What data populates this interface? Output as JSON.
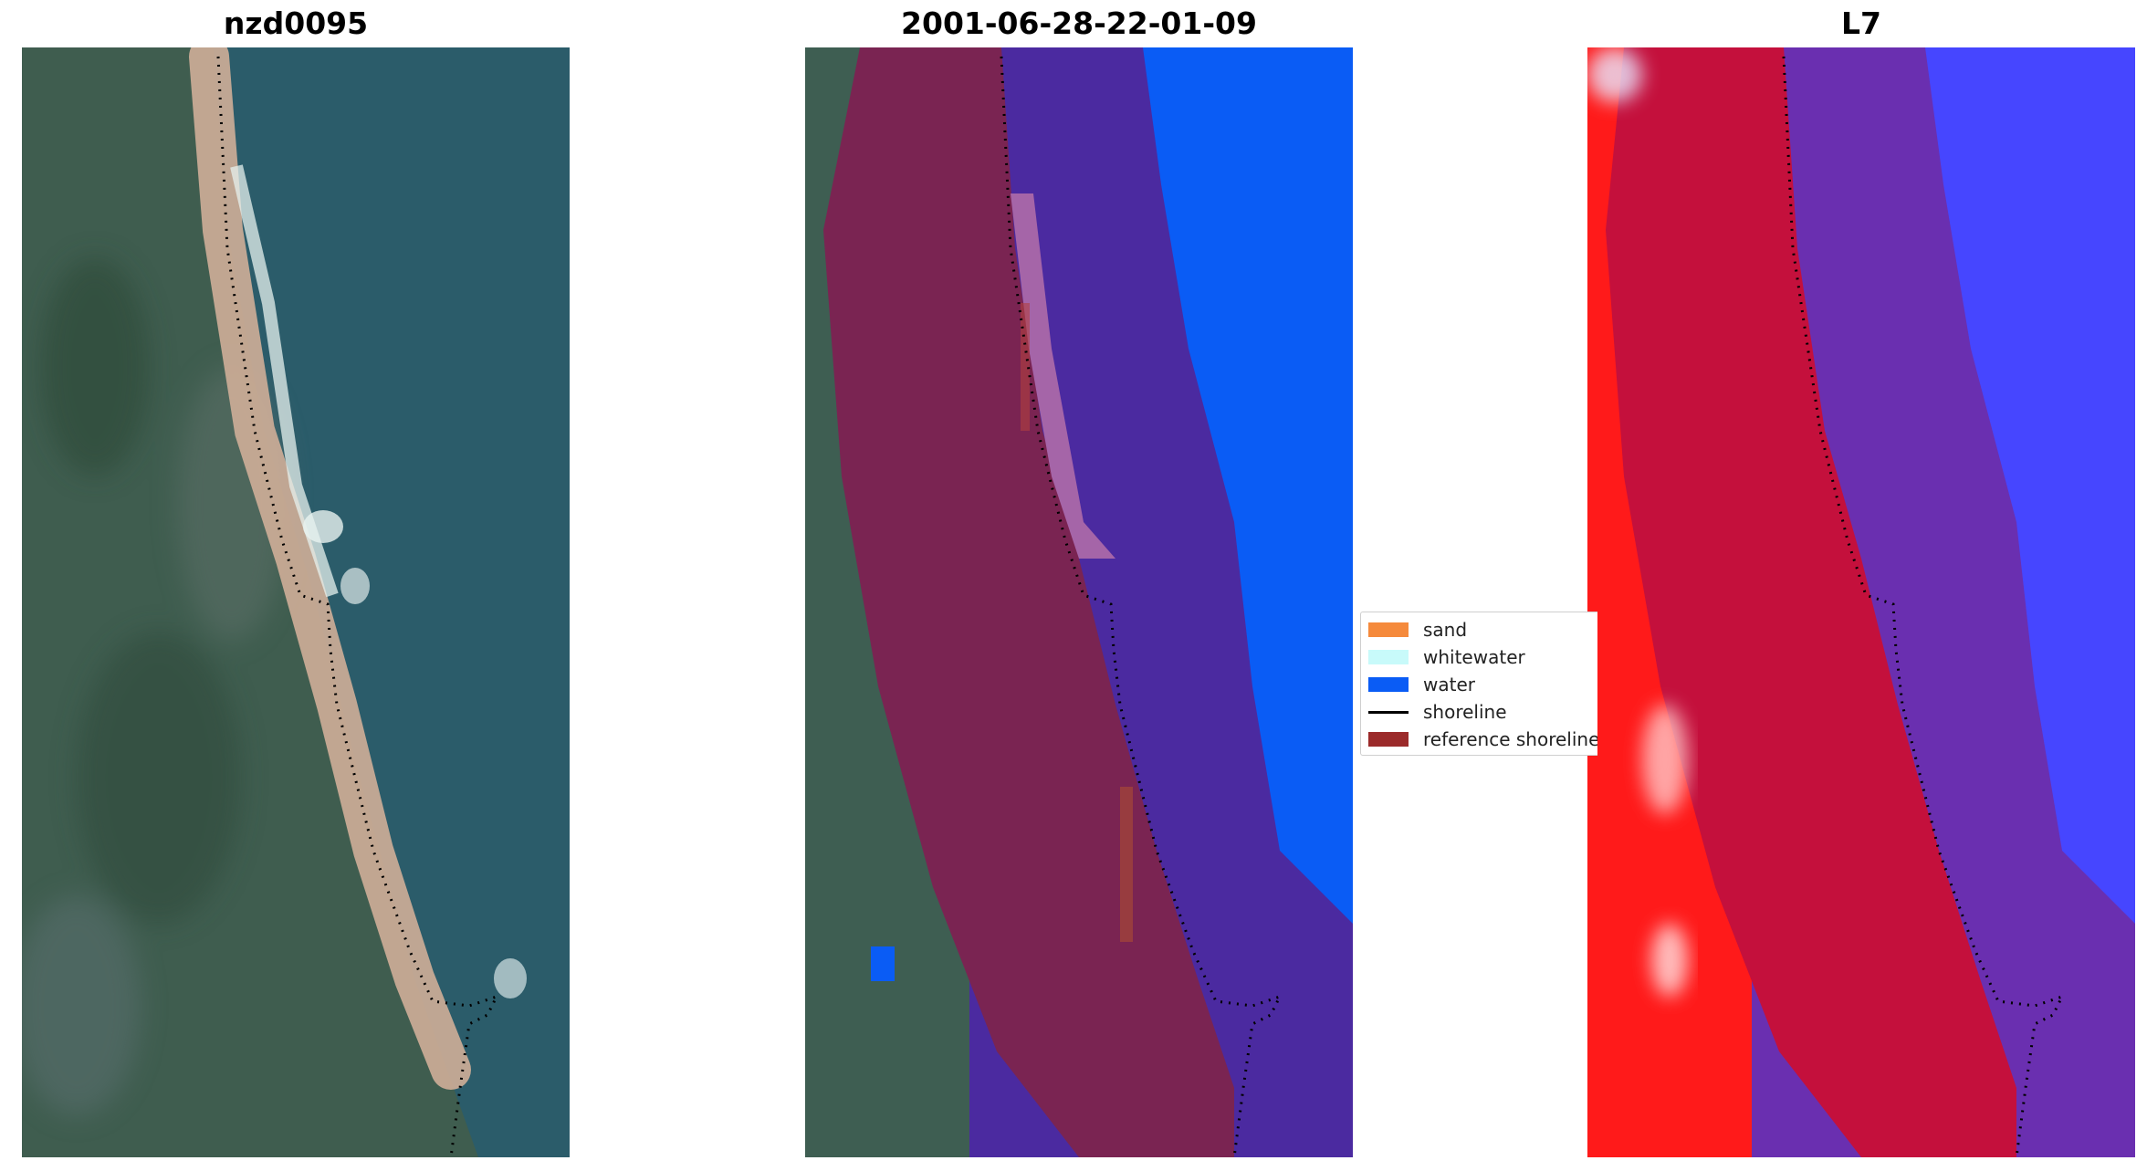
{
  "panels": [
    {
      "title": "nzd0095"
    },
    {
      "title": "2001-06-28-22-01-09"
    },
    {
      "title": "L7"
    }
  ],
  "legend": {
    "items": [
      {
        "label": "sand",
        "color": "#f58a3c"
      },
      {
        "label": "whitewater",
        "color": "#c8fafa"
      },
      {
        "label": "water",
        "color": "#0a5cf5"
      },
      {
        "label": "shoreline",
        "color": "#000000"
      },
      {
        "label": "reference shoreline",
        "color": "#9b2a2a"
      }
    ]
  },
  "colors": {
    "land": "#3e5e52",
    "sea": "#2a5a6a",
    "sand": "#d9b39a",
    "water_class": "#0a5cf5",
    "overlay_land": "#7a2452",
    "overlay_water": "#4b2aa0",
    "l7_land": "#ff1a1a",
    "l7_water": "#4646ff"
  }
}
